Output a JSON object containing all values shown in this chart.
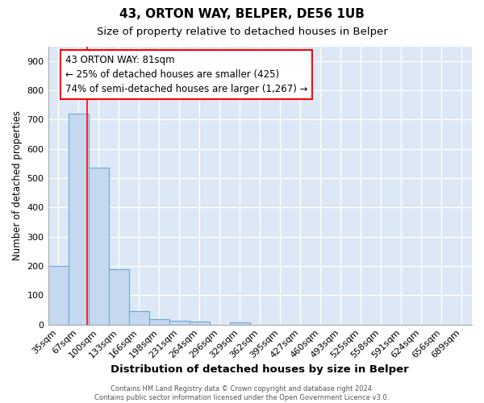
{
  "title1": "43, ORTON WAY, BELPER, DE56 1UB",
  "title2": "Size of property relative to detached houses in Belper",
  "xlabel": "Distribution of detached houses by size in Belper",
  "ylabel": "Number of detached properties",
  "categories": [
    "35sqm",
    "67sqm",
    "100sqm",
    "133sqm",
    "166sqm",
    "198sqm",
    "231sqm",
    "264sqm",
    "296sqm",
    "329sqm",
    "362sqm",
    "395sqm",
    "427sqm",
    "460sqm",
    "493sqm",
    "525sqm",
    "558sqm",
    "591sqm",
    "624sqm",
    "656sqm",
    "689sqm"
  ],
  "values": [
    200,
    720,
    535,
    190,
    45,
    18,
    13,
    10,
    0,
    8,
    0,
    0,
    0,
    0,
    0,
    0,
    0,
    0,
    0,
    0,
    0
  ],
  "bar_color": "#c5d8ef",
  "bar_edge_color": "#6aaad4",
  "bar_linewidth": 0.8,
  "red_line_x": 1.43,
  "ylim": [
    0,
    950
  ],
  "yticks": [
    0,
    100,
    200,
    300,
    400,
    500,
    600,
    700,
    800,
    900
  ],
  "annotation_line1": "43 ORTON WAY: 81sqm",
  "annotation_line2": "← 25% of detached houses are smaller (425)",
  "annotation_line3": "74% of semi-detached houses are larger (1,267) →",
  "footer_text": "Contains HM Land Registry data © Crown copyright and database right 2024.\nContains public sector information licensed under the Open Government Licence v3.0.",
  "bg_color": "#dce8f5",
  "grid_color": "#ffffff",
  "title1_fontsize": 11,
  "title2_fontsize": 9.5,
  "xlabel_fontsize": 9.5,
  "ylabel_fontsize": 8.5,
  "tick_fontsize": 8,
  "annot_fontsize": 8.5,
  "footer_fontsize": 6
}
